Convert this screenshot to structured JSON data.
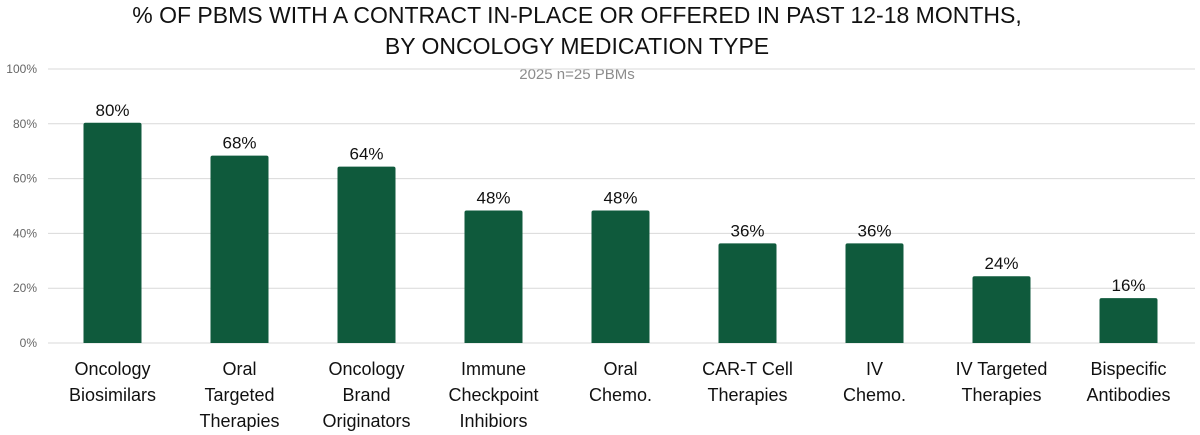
{
  "chart_data": {
    "type": "bar",
    "title_lines": [
      "% OF PBMS WITH A CONTRACT IN-PLACE OR OFFERED IN PAST 12-18 MONTHS,",
      "BY ONCOLOGY MEDICATION TYPE"
    ],
    "subtitle": "2025 n=25 PBMs",
    "categories": [
      [
        "Oncology",
        "Biosimilars"
      ],
      [
        "Oral",
        "Targeted",
        "Therapies"
      ],
      [
        "Oncology",
        "Brand",
        "Originators"
      ],
      [
        "Immune",
        "Checkpoint",
        "Inhibiors"
      ],
      [
        "Oral",
        "Chemo."
      ],
      [
        "CAR-T Cell",
        "Therapies"
      ],
      [
        "IV",
        "Chemo."
      ],
      [
        "IV Targeted",
        "Therapies"
      ],
      [
        "Bispecific",
        "Antibodies"
      ]
    ],
    "values": [
      80,
      68,
      64,
      48,
      48,
      36,
      36,
      24,
      16
    ],
    "data_labels": [
      "80%",
      "68%",
      "64%",
      "48%",
      "48%",
      "36%",
      "36%",
      "24%",
      "16%"
    ],
    "yticks": [
      0,
      20,
      40,
      60,
      80,
      100
    ],
    "ytick_labels": [
      "0%",
      "20%",
      "40%",
      "60%",
      "80%",
      "100%"
    ],
    "ylim": [
      0,
      100
    ],
    "grid": true,
    "bar_color": "#0f5a3c",
    "xlabel": "",
    "ylabel": ""
  }
}
